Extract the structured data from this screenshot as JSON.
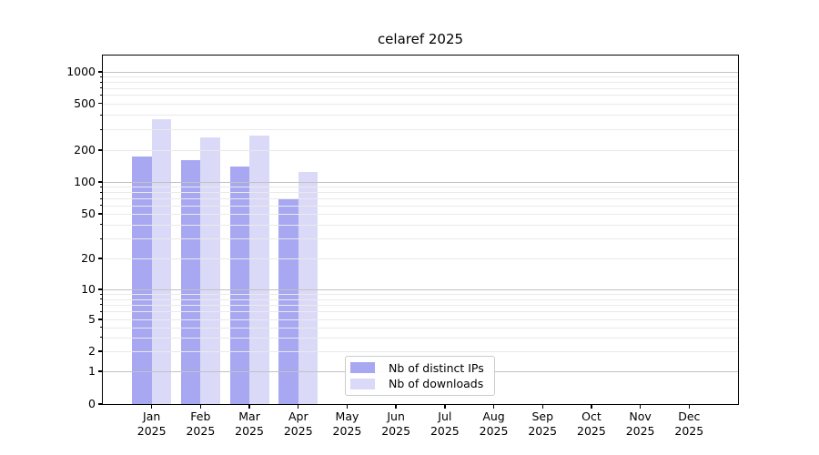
{
  "chart_data": {
    "type": "bar",
    "title": "celaref 2025",
    "categories": [
      "Jan",
      "Feb",
      "Mar",
      "Apr",
      "May",
      "Jun",
      "Jul",
      "Aug",
      "Sep",
      "Oct",
      "Nov",
      "Dec"
    ],
    "category_year": "2025",
    "series": [
      {
        "name": "Nb of distinct IPs",
        "color": "#a7a7f2",
        "values": [
          175,
          160,
          140,
          70,
          0,
          0,
          0,
          0,
          0,
          0,
          0,
          0
        ]
      },
      {
        "name": "Nb of downloads",
        "color": "#dadaf8",
        "values": [
          365,
          255,
          265,
          125,
          0,
          0,
          0,
          0,
          0,
          0,
          0,
          0
        ]
      }
    ],
    "y_axis": {
      "scale": "symlog",
      "tick_values": [
        0,
        1,
        2,
        5,
        10,
        20,
        50,
        100,
        200,
        500,
        1000
      ],
      "tick_labels": [
        "0",
        "1",
        "2",
        "5",
        "10",
        "20",
        "50",
        "100",
        "200",
        "500",
        "1000"
      ]
    },
    "grid": {
      "orientation": "horizontal",
      "major_values": [
        1,
        10,
        100,
        1000
      ],
      "major_color": "#c2c2c2",
      "minor_color": "#eaeaea"
    },
    "legend": {
      "position": "bottom-center",
      "entries": [
        "Nb of distinct IPs",
        "Nb of downloads"
      ]
    },
    "colors": {
      "background": "#ffffff",
      "axis": "#000000",
      "bar_distinct_ips": "#a7a7f2",
      "bar_downloads": "#dadaf8"
    }
  }
}
